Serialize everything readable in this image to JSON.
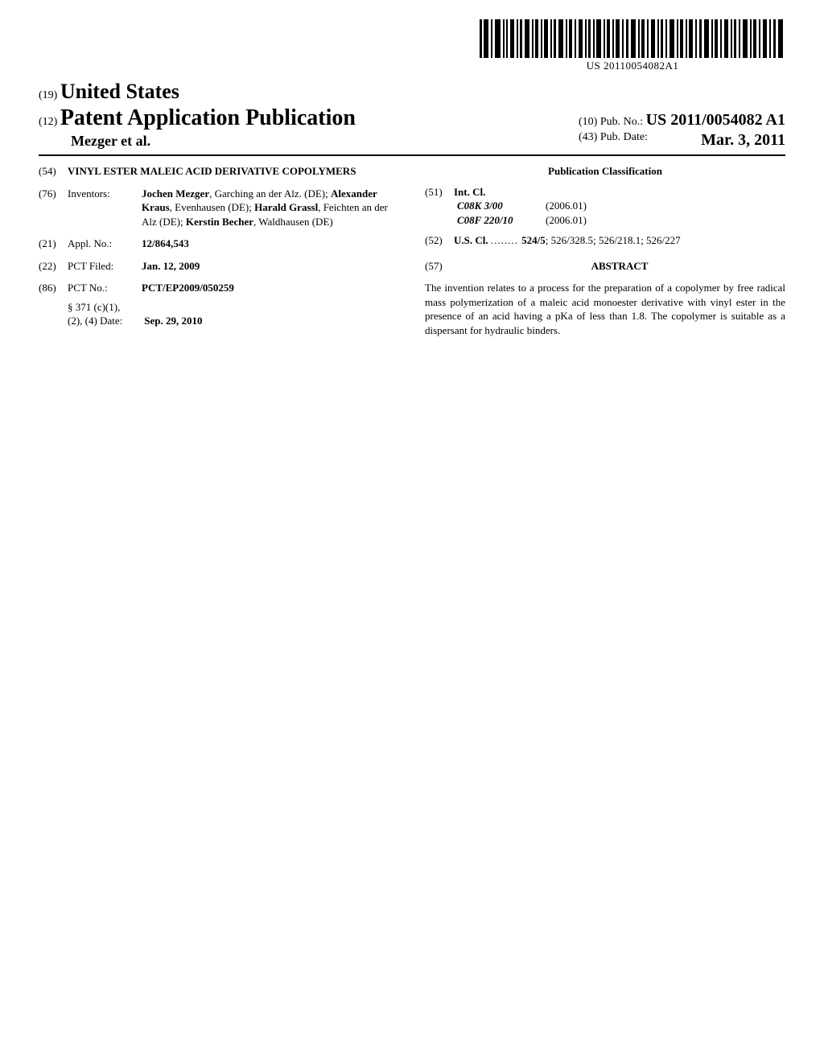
{
  "barcode": {
    "text": "US 20110054082A1"
  },
  "header": {
    "country_code": "(19)",
    "country": "United States",
    "pub_code": "(12)",
    "pub_type": "Patent Application Publication",
    "authors": "Mezger et al.",
    "pubno_code": "(10)",
    "pubno_label": "Pub. No.:",
    "pubno": "US 2011/0054082 A1",
    "pubdate_code": "(43)",
    "pubdate_label": "Pub. Date:",
    "pubdate": "Mar. 3, 2011"
  },
  "title": {
    "code": "(54)",
    "value": "VINYL ESTER MALEIC ACID DERIVATIVE COPOLYMERS"
  },
  "inventors": {
    "code": "(76)",
    "label": "Inventors:",
    "html": "<b>Jochen Mezger</b>, Garching an der Alz. (DE); <b>Alexander Kraus</b>, Evenhausen (DE); <b>Harald Grassl</b>, Feichten an der Alz (DE); <b>Kerstin Becher</b>, Waldhausen (DE)"
  },
  "applno": {
    "code": "(21)",
    "label": "Appl. No.:",
    "value": "12/864,543"
  },
  "pctfiled": {
    "code": "(22)",
    "label": "PCT Filed:",
    "value": "Jan. 12, 2009"
  },
  "pctno": {
    "code": "(86)",
    "label": "PCT No.:",
    "value": "PCT/EP2009/050259"
  },
  "s371": {
    "label1": "§ 371 (c)(1),",
    "label2": "(2), (4) Date:",
    "value": "Sep. 29, 2010"
  },
  "classification": {
    "heading": "Publication Classification",
    "intcl_code": "(51)",
    "intcl_label": "Int. Cl.",
    "intcl": [
      {
        "code": "C08K 3/00",
        "year": "(2006.01)"
      },
      {
        "code": "C08F 220/10",
        "year": "(2006.01)"
      }
    ],
    "uscl_code": "(52)",
    "uscl_label": "U.S. Cl.",
    "uscl_lead": "524/5",
    "uscl_rest": "; 526/328.5; 526/218.1; 526/227"
  },
  "abstract": {
    "code": "(57)",
    "heading": "ABSTRACT",
    "text": "The invention relates to a process for the preparation of a copolymer by free radical mass polymerization of a maleic acid monoester derivative with vinyl ester in the presence of an acid having a pKa of less than 1.8. The copolymer is suitable as a dispersant for hydraulic binders."
  }
}
